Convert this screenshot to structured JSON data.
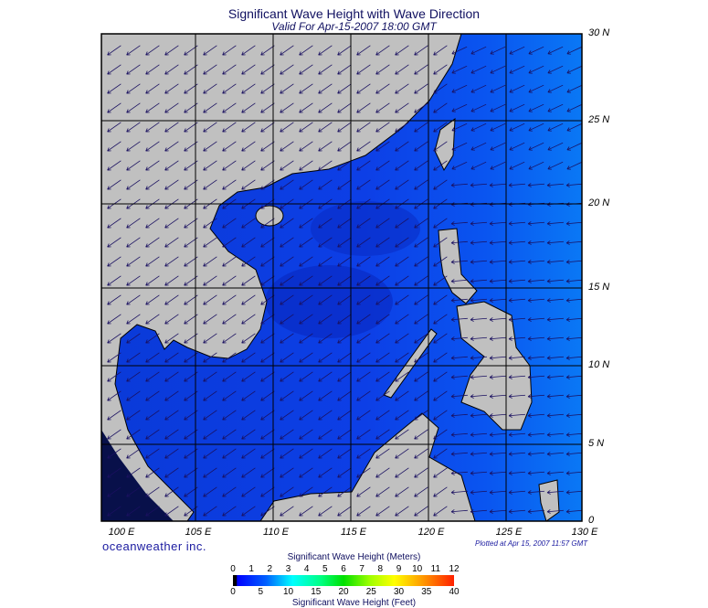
{
  "title": "Significant Wave Height with Wave Direction",
  "subtitle": "Valid For Apr-15-2007 18:00 GMT",
  "brand": "oceanweather inc.",
  "plotted": "Plotted at Apr 15, 2007 11:57 GMT",
  "map": {
    "lon_labels": [
      "100 E",
      "105 E",
      "110 E",
      "115 E",
      "120 E",
      "125 E",
      "130 E"
    ],
    "lat_labels": [
      "30 N",
      "25 N",
      "20 N",
      "15 N",
      "10 N",
      "5 N",
      "0"
    ],
    "land_color": "#c0c0c0",
    "ocean_color": "#1040e8"
  },
  "colorbar": {
    "title_top": "Significant Wave Height (Meters)",
    "title_bottom": "Significant Wave Height (Feet)",
    "meters": [
      "0",
      "1",
      "2",
      "3",
      "4",
      "5",
      "6",
      "7",
      "8",
      "9",
      "10",
      "11",
      "12"
    ],
    "feet": [
      "0",
      "5",
      "10",
      "15",
      "20",
      "25",
      "30",
      "35",
      "40"
    ]
  }
}
